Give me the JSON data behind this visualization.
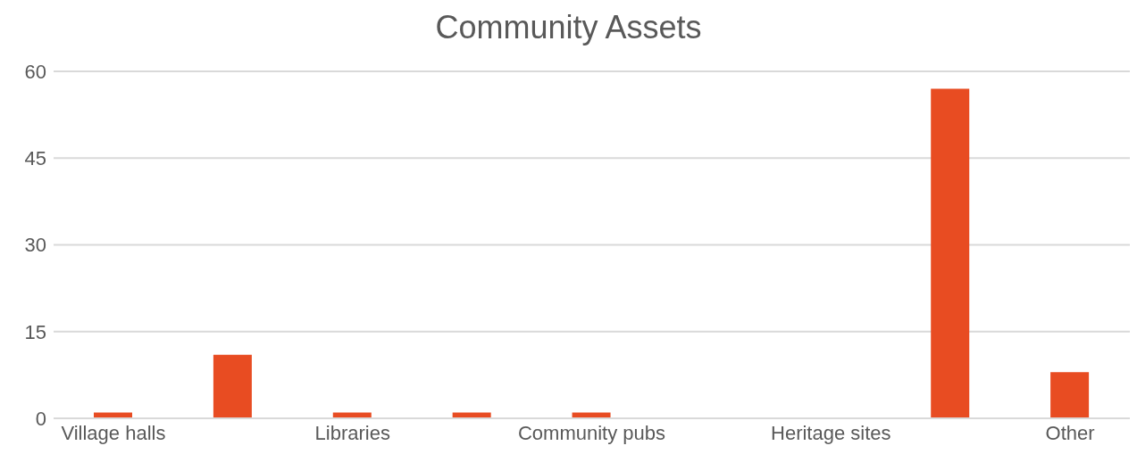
{
  "chart_data": {
    "type": "bar",
    "title": "Community Assets",
    "categories": [
      "Village halls",
      null,
      "Libraries",
      null,
      "Community pubs",
      null,
      "Heritage sites",
      null,
      "Other"
    ],
    "values": [
      1,
      11,
      1,
      1,
      1,
      0,
      0,
      57,
      8
    ],
    "color": "#e84c22",
    "ylim": [
      0,
      60
    ],
    "yticks": [
      0,
      15,
      30,
      45,
      60
    ],
    "grid": "y",
    "legend": false
  }
}
